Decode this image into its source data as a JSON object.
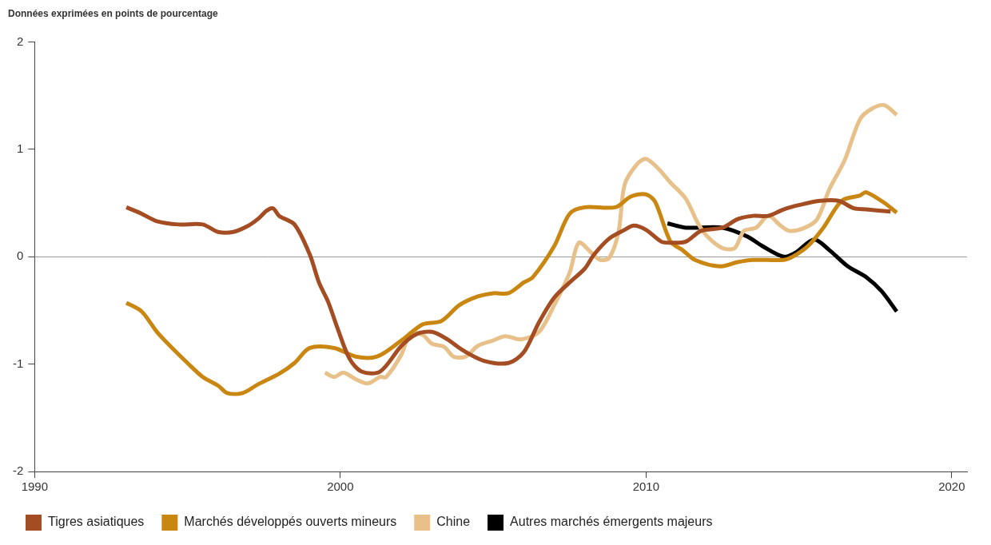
{
  "chart_data": {
    "type": "line",
    "title": "Données exprimées en points de pourcentage",
    "xlim": [
      1990,
      2020.5
    ],
    "xticks": [
      1990,
      2000,
      2010,
      2020
    ],
    "ylim": [
      -2,
      2
    ],
    "yticks": [
      -2,
      -1,
      0,
      1,
      2
    ],
    "grid": false,
    "legend": "bottom",
    "series": [
      {
        "name": "Tigres asiatiques",
        "color": "#a44d22",
        "x": [
          1993.0,
          1993.5,
          1994.0,
          1994.7,
          1995.5,
          1996.0,
          1996.5,
          1997.0,
          1997.3,
          1997.6,
          1997.8,
          1998.0,
          1998.5,
          1999.0,
          1999.3,
          1999.6,
          1999.9,
          2000.3,
          2000.7,
          2001.3,
          2002.0,
          2002.5,
          2003.0,
          2003.5,
          2004.0,
          2004.7,
          2005.5,
          2006.0,
          2006.5,
          2007.0,
          2007.5,
          2008.0,
          2008.3,
          2008.8,
          2009.3,
          2009.6,
          2010.0,
          2010.5,
          2010.8,
          2011.3,
          2011.8,
          2012.5,
          2013.0,
          2013.5,
          2014.0,
          2014.5,
          2015.0,
          2015.7,
          2016.3,
          2016.8,
          2017.2,
          2018.0
        ],
        "values": [
          0.46,
          0.4,
          0.33,
          0.3,
          0.3,
          0.23,
          0.23,
          0.29,
          0.35,
          0.43,
          0.45,
          0.38,
          0.3,
          0.02,
          -0.24,
          -0.42,
          -0.66,
          -0.95,
          -1.07,
          -1.07,
          -0.83,
          -0.72,
          -0.7,
          -0.77,
          -0.87,
          -0.97,
          -0.99,
          -0.89,
          -0.61,
          -0.38,
          -0.24,
          -0.11,
          0.02,
          0.17,
          0.25,
          0.29,
          0.25,
          0.14,
          0.13,
          0.14,
          0.24,
          0.27,
          0.35,
          0.38,
          0.38,
          0.44,
          0.48,
          0.52,
          0.52,
          0.45,
          0.44,
          0.42
        ]
      },
      {
        "name": "Marchés développés ouverts mineurs",
        "color": "#c98712",
        "x": [
          1993.0,
          1993.5,
          1994.0,
          1994.5,
          1995.0,
          1995.5,
          1996.0,
          1996.3,
          1996.8,
          1997.3,
          1998.0,
          1998.5,
          1999.0,
          1999.8,
          2000.5,
          2001.2,
          2002.0,
          2002.7,
          2003.3,
          2003.9,
          2004.5,
          2005.0,
          2005.5,
          2006.0,
          2006.3,
          2007.0,
          2007.5,
          2008.0,
          2009.0,
          2009.5,
          2010.0,
          2010.3,
          2010.8,
          2011.2,
          2011.6,
          2012.4,
          2013.0,
          2013.5,
          2014.5,
          2014.8,
          2015.3,
          2015.8,
          2016.4,
          2017.0,
          2017.2,
          2017.8,
          2018.2
        ],
        "values": [
          -0.43,
          -0.51,
          -0.7,
          -0.85,
          -0.99,
          -1.12,
          -1.2,
          -1.27,
          -1.27,
          -1.19,
          -1.09,
          -0.99,
          -0.85,
          -0.85,
          -0.93,
          -0.93,
          -0.78,
          -0.63,
          -0.6,
          -0.45,
          -0.37,
          -0.34,
          -0.34,
          -0.24,
          -0.19,
          0.1,
          0.4,
          0.46,
          0.46,
          0.56,
          0.58,
          0.51,
          0.14,
          0.06,
          -0.03,
          -0.09,
          -0.05,
          -0.03,
          -0.03,
          0.0,
          0.1,
          0.27,
          0.52,
          0.57,
          0.6,
          0.5,
          0.41
        ]
      },
      {
        "name": "Chine",
        "color": "#e8c08a",
        "x": [
          1999.5,
          1999.8,
          2000.1,
          2000.5,
          2000.9,
          2001.3,
          2001.5,
          2002.0,
          2002.3,
          2002.7,
          2003.0,
          2003.4,
          2003.7,
          2004.1,
          2004.5,
          2005.0,
          2005.4,
          2005.9,
          2006.5,
          2007.0,
          2007.5,
          2007.8,
          2008.2,
          2008.5,
          2008.8,
          2009.1,
          2009.3,
          2009.7,
          2010.0,
          2010.4,
          2010.8,
          2011.3,
          2011.7,
          2012.0,
          2012.5,
          2012.9,
          2013.2,
          2013.6,
          2014.0,
          2014.4,
          2014.7,
          2015.2,
          2015.6,
          2016.0,
          2016.5,
          2017.0,
          2017.4,
          2017.8,
          2018.2
        ],
        "values": [
          -1.08,
          -1.12,
          -1.08,
          -1.14,
          -1.18,
          -1.12,
          -1.12,
          -0.91,
          -0.71,
          -0.73,
          -0.81,
          -0.84,
          -0.93,
          -0.93,
          -0.83,
          -0.78,
          -0.74,
          -0.77,
          -0.7,
          -0.45,
          -0.15,
          0.13,
          0.04,
          -0.03,
          -0.01,
          0.23,
          0.67,
          0.86,
          0.91,
          0.82,
          0.69,
          0.54,
          0.31,
          0.19,
          0.08,
          0.08,
          0.24,
          0.27,
          0.38,
          0.29,
          0.24,
          0.27,
          0.35,
          0.63,
          0.9,
          1.28,
          1.38,
          1.41,
          1.32
        ]
      },
      {
        "name": "Autres marchés émergents majeurs",
        "color": "#000000",
        "x": [
          2010.7,
          2011.3,
          2012.5,
          2013.3,
          2013.8,
          2014.5,
          2014.9,
          2015.5,
          2016.0,
          2016.6,
          2017.2,
          2017.7,
          2018.2
        ],
        "values": [
          0.31,
          0.27,
          0.27,
          0.19,
          0.1,
          0.0,
          0.04,
          0.16,
          0.06,
          -0.09,
          -0.19,
          -0.32,
          -0.51
        ]
      }
    ]
  }
}
